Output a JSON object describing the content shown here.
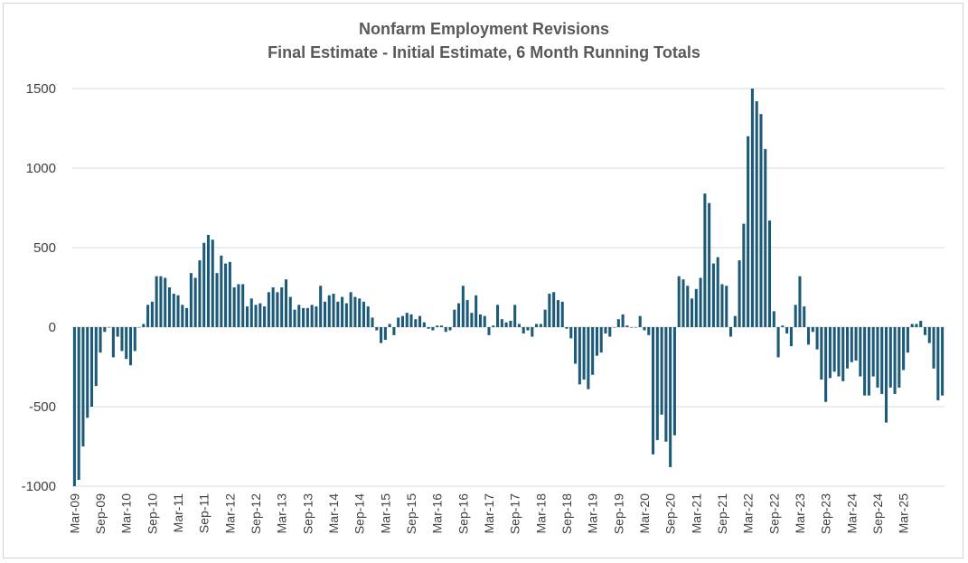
{
  "chart_data": {
    "type": "bar",
    "title": "Nonfarm Employment Revisions",
    "subtitle": "Final Estimate - Initial Estimate, 6 Month Running Totals",
    "xlabel": "",
    "ylabel": "",
    "ylim": [
      -1000,
      1500
    ],
    "yticks": [
      -1000,
      -500,
      0,
      500,
      1000,
      1500
    ],
    "grid": true,
    "bar_color": "#1b5a78",
    "x_tick_labels": [
      "Mar-09",
      "Sep-09",
      "Mar-10",
      "Sep-10",
      "Mar-11",
      "Sep-11",
      "Mar-12",
      "Sep-12",
      "Mar-13",
      "Sep-13",
      "Mar-14",
      "Sep-14",
      "Mar-15",
      "Sep-15",
      "Mar-16",
      "Sep-16",
      "Mar-17",
      "Sep-17",
      "Mar-18",
      "Sep-18",
      "Mar-19",
      "Sep-19",
      "Mar-20",
      "Sep-20",
      "Mar-21",
      "Sep-21",
      "Mar-22",
      "Sep-22",
      "Mar-23",
      "Sep-23",
      "Mar-24",
      "Sep-24",
      "Mar-25"
    ],
    "start_month": "Mar-09",
    "values": [
      -1000,
      -960,
      -750,
      -570,
      -500,
      -370,
      -160,
      -30,
      0,
      -190,
      -60,
      -150,
      -200,
      -240,
      -150,
      0,
      20,
      140,
      160,
      320,
      320,
      310,
      250,
      210,
      200,
      140,
      120,
      340,
      310,
      420,
      530,
      580,
      550,
      340,
      450,
      400,
      410,
      250,
      270,
      270,
      130,
      180,
      140,
      150,
      130,
      220,
      250,
      220,
      250,
      300,
      190,
      110,
      140,
      120,
      120,
      140,
      130,
      260,
      160,
      200,
      210,
      160,
      190,
      150,
      220,
      190,
      180,
      160,
      130,
      60,
      -20,
      -100,
      -80,
      20,
      -50,
      60,
      70,
      90,
      80,
      50,
      70,
      30,
      -10,
      -20,
      10,
      10,
      -30,
      -20,
      110,
      150,
      260,
      170,
      90,
      200,
      80,
      70,
      -50,
      10,
      140,
      50,
      30,
      40,
      140,
      20,
      -40,
      -20,
      -60,
      20,
      20,
      110,
      210,
      220,
      170,
      160,
      -10,
      -70,
      -230,
      -360,
      -330,
      -390,
      -300,
      -180,
      -160,
      -40,
      -60,
      0,
      50,
      80,
      10,
      0,
      0,
      70,
      -20,
      -50,
      -800,
      -710,
      -550,
      -720,
      -880,
      -680,
      320,
      300,
      260,
      180,
      240,
      310,
      840,
      780,
      400,
      440,
      270,
      260,
      -60,
      70,
      420,
      650,
      1200,
      1500,
      1420,
      1340,
      1120,
      670,
      100,
      -190,
      10,
      -40,
      -120,
      140,
      320,
      130,
      -110,
      -30,
      -140,
      -330,
      -470,
      -320,
      -280,
      -310,
      -340,
      -260,
      -220,
      -210,
      -310,
      -430,
      -430,
      -310,
      -380,
      -420,
      -600,
      -380,
      -420,
      -380,
      -270,
      -160,
      20,
      20,
      40,
      -50,
      -100,
      -260,
      -460,
      -430
    ]
  }
}
